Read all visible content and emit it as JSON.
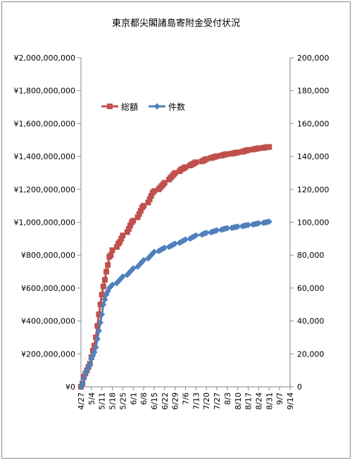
{
  "chart_data": {
    "type": "line",
    "title": "東京都尖閣諸島寄附金受付状況",
    "x_tick_labels": [
      "4/27",
      "5/4",
      "5/11",
      "5/18",
      "5/25",
      "6/1",
      "6/8",
      "6/15",
      "6/22",
      "6/29",
      "7/6",
      "7/13",
      "7/20",
      "7/27",
      "8/3",
      "8/10",
      "8/17",
      "8/24",
      "8/31",
      "9/7",
      "9/14"
    ],
    "x_range_days": [
      0,
      140
    ],
    "y_left": {
      "ylim": [
        0,
        2000000000
      ],
      "ticks": [
        "¥0",
        "¥200,000,000",
        "¥400,000,000",
        "¥600,000,000",
        "¥800,000,000",
        "¥1,000,000,000",
        "¥1,200,000,000",
        "¥1,400,000,000",
        "¥1,600,000,000",
        "¥1,800,000,000",
        "¥2,000,000,000"
      ]
    },
    "y_right": {
      "ylim": [
        0,
        200000
      ],
      "ticks": [
        "0",
        "20,000",
        "40,000",
        "60,000",
        "80,000",
        "100,000",
        "120,000",
        "140,000",
        "160,000",
        "180,000",
        "200,000"
      ]
    },
    "series": [
      {
        "name": "総額",
        "axis": "left",
        "color": "#c0504d",
        "marker": "square",
        "x_dates": [
          "4/27",
          "4/28",
          "4/29",
          "4/30",
          "5/1",
          "5/2",
          "5/3",
          "5/4",
          "5/5",
          "5/6",
          "5/7",
          "5/8",
          "5/9",
          "5/10",
          "5/11",
          "5/12",
          "5/13",
          "5/14",
          "5/15",
          "5/16",
          "5/17",
          "5/18",
          "5/21",
          "5/22",
          "5/23",
          "5/24",
          "5/25",
          "5/28",
          "5/29",
          "5/30",
          "5/31",
          "6/1",
          "6/4",
          "6/5",
          "6/6",
          "6/7",
          "6/8",
          "6/11",
          "6/12",
          "6/13",
          "6/14",
          "6/15",
          "6/18",
          "6/19",
          "6/20",
          "6/21",
          "6/22",
          "6/25",
          "6/26",
          "6/27",
          "6/28",
          "6/29",
          "7/2",
          "7/3",
          "7/4",
          "7/5",
          "7/6",
          "7/9",
          "7/10",
          "7/11",
          "7/12",
          "7/13",
          "7/17",
          "7/18",
          "7/19",
          "7/20",
          "7/23",
          "7/24",
          "7/25",
          "7/26",
          "7/27",
          "7/30",
          "7/31",
          "8/1",
          "8/2",
          "8/3",
          "8/6",
          "8/7",
          "8/8",
          "8/9",
          "8/10",
          "8/13",
          "8/14",
          "8/15",
          "8/16",
          "8/17",
          "8/20",
          "8/21",
          "8/22",
          "8/23",
          "8/24",
          "8/27",
          "8/28",
          "8/29",
          "8/30",
          "8/31"
        ],
        "values": [
          0,
          20000000,
          60000000,
          80000000,
          100000000,
          120000000,
          140000000,
          180000000,
          220000000,
          250000000,
          300000000,
          370000000,
          440000000,
          500000000,
          560000000,
          610000000,
          650000000,
          700000000,
          740000000,
          790000000,
          800000000,
          830000000,
          850000000,
          870000000,
          880000000,
          900000000,
          920000000,
          940000000,
          960000000,
          980000000,
          1000000000,
          1010000000,
          1030000000,
          1050000000,
          1070000000,
          1090000000,
          1100000000,
          1120000000,
          1140000000,
          1160000000,
          1180000000,
          1190000000,
          1200000000,
          1210000000,
          1220000000,
          1230000000,
          1240000000,
          1260000000,
          1270000000,
          1280000000,
          1290000000,
          1300000000,
          1310000000,
          1320000000,
          1325000000,
          1330000000,
          1335000000,
          1345000000,
          1350000000,
          1355000000,
          1360000000,
          1365000000,
          1370000000,
          1375000000,
          1380000000,
          1385000000,
          1390000000,
          1393000000,
          1396000000,
          1399000000,
          1402000000,
          1405000000,
          1408000000,
          1411000000,
          1413000000,
          1415000000,
          1417000000,
          1419000000,
          1421000000,
          1423000000,
          1425000000,
          1428000000,
          1431000000,
          1434000000,
          1437000000,
          1440000000,
          1442000000,
          1444000000,
          1446000000,
          1448000000,
          1450000000,
          1452000000,
          1454000000,
          1456000000,
          1457000000,
          1458000000
        ]
      },
      {
        "name": "件数",
        "axis": "right",
        "color": "#4f81bd",
        "marker": "diamond",
        "x_dates": [
          "4/27",
          "4/28",
          "4/29",
          "4/30",
          "5/1",
          "5/2",
          "5/3",
          "5/4",
          "5/5",
          "5/6",
          "5/7",
          "5/8",
          "5/9",
          "5/10",
          "5/11",
          "5/12",
          "5/13",
          "5/14",
          "5/15",
          "5/16",
          "5/17",
          "5/18",
          "5/21",
          "5/22",
          "5/23",
          "5/24",
          "5/25",
          "5/28",
          "5/29",
          "5/30",
          "5/31",
          "6/1",
          "6/4",
          "6/5",
          "6/6",
          "6/7",
          "6/8",
          "6/11",
          "6/12",
          "6/13",
          "6/14",
          "6/15",
          "6/18",
          "6/19",
          "6/20",
          "6/21",
          "6/22",
          "6/25",
          "6/26",
          "6/27",
          "6/28",
          "6/29",
          "7/2",
          "7/3",
          "7/4",
          "7/5",
          "7/6",
          "7/9",
          "7/10",
          "7/11",
          "7/12",
          "7/13",
          "7/17",
          "7/18",
          "7/19",
          "7/20",
          "7/23",
          "7/24",
          "7/25",
          "7/26",
          "7/27",
          "7/30",
          "7/31",
          "8/1",
          "8/2",
          "8/3",
          "8/6",
          "8/7",
          "8/8",
          "8/9",
          "8/10",
          "8/13",
          "8/14",
          "8/15",
          "8/16",
          "8/17",
          "8/20",
          "8/21",
          "8/22",
          "8/23",
          "8/24",
          "8/27",
          "8/28",
          "8/29",
          "8/30",
          "8/31"
        ],
        "values": [
          0,
          2000,
          5000,
          8000,
          10000,
          12000,
          14000,
          17000,
          19000,
          21000,
          24000,
          29000,
          34000,
          39000,
          44000,
          50000,
          53000,
          56000,
          58000,
          60000,
          61000,
          62000,
          63000,
          64000,
          65000,
          66000,
          67000,
          68000,
          69000,
          70000,
          71000,
          72000,
          73000,
          74000,
          75000,
          76000,
          77000,
          78000,
          79000,
          80000,
          81000,
          82000,
          82500,
          83000,
          83500,
          84000,
          84500,
          85000,
          85500,
          86000,
          86500,
          87000,
          87500,
          88000,
          88500,
          89000,
          89500,
          90000,
          90500,
          91000,
          91500,
          92000,
          92500,
          93000,
          93300,
          93600,
          93900,
          94200,
          94500,
          94800,
          95100,
          95400,
          95700,
          96000,
          96200,
          96400,
          96600,
          96800,
          97000,
          97200,
          97400,
          97600,
          97800,
          98000,
          98200,
          98400,
          98600,
          98800,
          99000,
          99200,
          99400,
          99600,
          99800,
          100000,
          100200,
          100400
        ]
      }
    ],
    "legend": "top-left, inside plot",
    "grid": false
  }
}
